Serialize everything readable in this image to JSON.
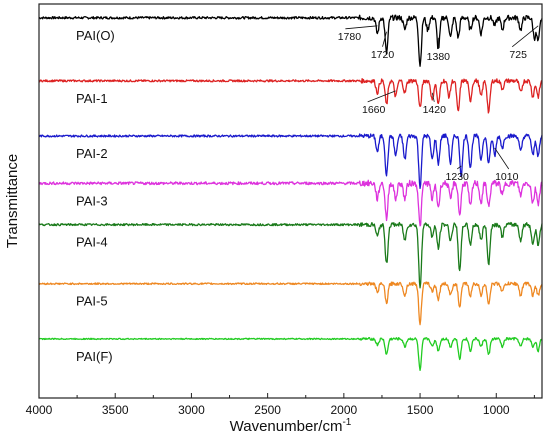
{
  "chart_data": {
    "type": "line",
    "title": "",
    "xlabel": "Wavenumber/cm",
    "xlabel_superscript": "-1",
    "ylabel": "Transmittance",
    "xlim": [
      4000,
      700
    ],
    "x_reversed": true,
    "x_ticks": [
      "4000",
      "3500",
      "3000",
      "2500",
      "2000",
      "1500",
      "1000"
    ],
    "grid": false,
    "legend": "none",
    "series": [
      {
        "name": "PAI(O)",
        "color": "#000000",
        "baseline": 0.965,
        "noise": 0.006,
        "peaks": [
          [
            1780,
            0.04
          ],
          [
            1720,
            0.09
          ],
          [
            1600,
            0.03
          ],
          [
            1500,
            0.12
          ],
          [
            1450,
            0.03
          ],
          [
            1380,
            0.08
          ],
          [
            1300,
            0.05
          ],
          [
            1250,
            0.05
          ],
          [
            1170,
            0.03
          ],
          [
            1100,
            0.04
          ],
          [
            1010,
            0.02
          ],
          [
            960,
            0.03
          ],
          [
            840,
            0.03
          ],
          [
            750,
            0.05
          ],
          [
            725,
            0.06
          ]
        ]
      },
      {
        "name": "PAI-1",
        "color": "#dd2222",
        "baseline": 0.805,
        "noise": 0.005,
        "peaks": [
          [
            1780,
            0.03
          ],
          [
            1720,
            0.06
          ],
          [
            1660,
            0.04
          ],
          [
            1600,
            0.03
          ],
          [
            1500,
            0.07
          ],
          [
            1420,
            0.05
          ],
          [
            1380,
            0.06
          ],
          [
            1310,
            0.04
          ],
          [
            1250,
            0.08
          ],
          [
            1170,
            0.05
          ],
          [
            1100,
            0.04
          ],
          [
            1050,
            0.08
          ],
          [
            960,
            0.02
          ],
          [
            840,
            0.03
          ],
          [
            760,
            0.04
          ],
          [
            725,
            0.04
          ]
        ]
      },
      {
        "name": "PAI-2",
        "color": "#1a1acc",
        "baseline": 0.665,
        "noise": 0.005,
        "peaks": [
          [
            1780,
            0.04
          ],
          [
            1720,
            0.1
          ],
          [
            1660,
            0.05
          ],
          [
            1600,
            0.06
          ],
          [
            1500,
            0.13
          ],
          [
            1420,
            0.06
          ],
          [
            1380,
            0.07
          ],
          [
            1300,
            0.07
          ],
          [
            1230,
            0.1
          ],
          [
            1170,
            0.08
          ],
          [
            1100,
            0.06
          ],
          [
            1050,
            0.07
          ],
          [
            1010,
            0.05
          ],
          [
            960,
            0.03
          ],
          [
            840,
            0.04
          ],
          [
            760,
            0.05
          ],
          [
            725,
            0.05
          ]
        ]
      },
      {
        "name": "PAI-3",
        "color": "#dd33dd",
        "baseline": 0.545,
        "noise": 0.007,
        "peaks": [
          [
            1780,
            0.04
          ],
          [
            1720,
            0.09
          ],
          [
            1660,
            0.04
          ],
          [
            1600,
            0.04
          ],
          [
            1500,
            0.11
          ],
          [
            1420,
            0.04
          ],
          [
            1380,
            0.06
          ],
          [
            1300,
            0.04
          ],
          [
            1240,
            0.08
          ],
          [
            1170,
            0.06
          ],
          [
            1100,
            0.05
          ],
          [
            1050,
            0.06
          ],
          [
            960,
            0.03
          ],
          [
            840,
            0.03
          ],
          [
            760,
            0.05
          ],
          [
            725,
            0.05
          ]
        ]
      },
      {
        "name": "PAI-4",
        "color": "#1a7a1a",
        "baseline": 0.44,
        "noise": 0.005,
        "peaks": [
          [
            1780,
            0.03
          ],
          [
            1720,
            0.1
          ],
          [
            1600,
            0.04
          ],
          [
            1500,
            0.16
          ],
          [
            1420,
            0.03
          ],
          [
            1380,
            0.06
          ],
          [
            1300,
            0.04
          ],
          [
            1240,
            0.12
          ],
          [
            1170,
            0.05
          ],
          [
            1100,
            0.04
          ],
          [
            1050,
            0.1
          ],
          [
            960,
            0.03
          ],
          [
            840,
            0.04
          ],
          [
            760,
            0.05
          ],
          [
            725,
            0.05
          ]
        ]
      },
      {
        "name": "PAI-5",
        "color": "#ee8822",
        "baseline": 0.29,
        "noise": 0.004,
        "peaks": [
          [
            1780,
            0.02
          ],
          [
            1720,
            0.05
          ],
          [
            1600,
            0.03
          ],
          [
            1500,
            0.1
          ],
          [
            1420,
            0.02
          ],
          [
            1380,
            0.04
          ],
          [
            1300,
            0.03
          ],
          [
            1240,
            0.06
          ],
          [
            1170,
            0.03
          ],
          [
            1100,
            0.03
          ],
          [
            1050,
            0.05
          ],
          [
            960,
            0.02
          ],
          [
            840,
            0.03
          ],
          [
            760,
            0.03
          ],
          [
            725,
            0.03
          ]
        ]
      },
      {
        "name": "PAI(F)",
        "color": "#22cc22",
        "baseline": 0.15,
        "noise": 0.003,
        "peaks": [
          [
            1780,
            0.015
          ],
          [
            1720,
            0.04
          ],
          [
            1600,
            0.02
          ],
          [
            1500,
            0.08
          ],
          [
            1420,
            0.02
          ],
          [
            1380,
            0.03
          ],
          [
            1300,
            0.02
          ],
          [
            1240,
            0.05
          ],
          [
            1170,
            0.03
          ],
          [
            1100,
            0.02
          ],
          [
            1050,
            0.04
          ],
          [
            960,
            0.02
          ],
          [
            840,
            0.02
          ],
          [
            760,
            0.02
          ],
          [
            725,
            0.03
          ]
        ]
      }
    ],
    "annotations": [
      {
        "text": "1780",
        "x": 1780,
        "series": "PAI(O)"
      },
      {
        "text": "1720",
        "x": 1720,
        "series": "PAI(O)"
      },
      {
        "text": "1380",
        "x": 1380,
        "series": "PAI(O)"
      },
      {
        "text": "725",
        "x": 725,
        "series": "PAI(O)"
      },
      {
        "text": "1660",
        "x": 1660,
        "series": "PAI-1"
      },
      {
        "text": "1420",
        "x": 1420,
        "series": "PAI-1"
      },
      {
        "text": "1230",
        "x": 1230,
        "series": "PAI-2"
      },
      {
        "text": "1010",
        "x": 1010,
        "series": "PAI-2"
      }
    ]
  }
}
